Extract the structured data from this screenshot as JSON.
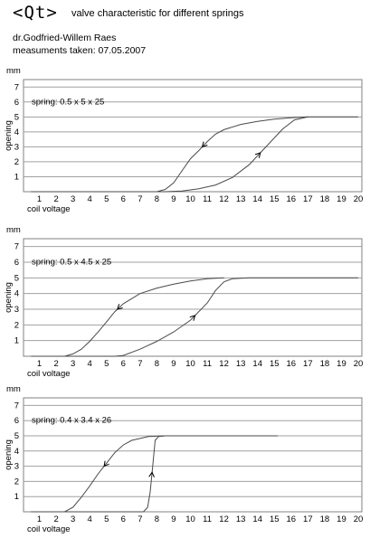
{
  "header": {
    "logo": "<Qt>",
    "title": "valve characteristic for different springs",
    "author": "dr.Godfried-Willem Raes",
    "measured": "measuments taken: 07.05.2007"
  },
  "colors": {
    "curve": "#4a4a4a",
    "grid": "#a0a0a0",
    "frame": "#808080"
  },
  "chart_data": [
    {
      "type": "line",
      "annotation": "spring: 0.5 x 5 x 25",
      "xlabel": "coil voltage",
      "ylabel": "opening",
      "unit": "mm",
      "xlim": [
        0,
        20
      ],
      "ylim": [
        0,
        7.5
      ],
      "xticks": [
        1,
        2,
        3,
        4,
        5,
        6,
        7,
        8,
        9,
        10,
        11,
        12,
        13,
        14,
        15,
        16,
        17,
        18,
        19,
        20
      ],
      "yticks": [
        1,
        2,
        3,
        4,
        5,
        6,
        7
      ],
      "series": [
        {
          "direction": "rising",
          "x": [
            0.5,
            8.5,
            9.5,
            10.5,
            11.5,
            12.5,
            13.5,
            14.5,
            15.5,
            16.2,
            17,
            18,
            20
          ],
          "y": [
            0,
            0,
            0.05,
            0.2,
            0.45,
            0.95,
            1.8,
            3.0,
            4.2,
            4.8,
            5.0,
            5.0,
            5.0
          ]
        },
        {
          "direction": "falling",
          "x": [
            17,
            16,
            15,
            14,
            13,
            12,
            11.5,
            11,
            10.5,
            10,
            9.5,
            9,
            8.5,
            8,
            0.5
          ],
          "y": [
            5.0,
            4.95,
            4.85,
            4.7,
            4.5,
            4.15,
            3.85,
            3.35,
            2.75,
            2.2,
            1.4,
            0.6,
            0.15,
            0,
            0
          ]
        }
      ]
    },
    {
      "type": "line",
      "annotation": "spring: 0.5 x 4.5 x 25",
      "xlabel": "coil voltage",
      "ylabel": "opening",
      "unit": "mm",
      "xlim": [
        0,
        20
      ],
      "ylim": [
        0,
        7.5
      ],
      "xticks": [
        1,
        2,
        3,
        4,
        5,
        6,
        7,
        8,
        9,
        10,
        11,
        12,
        13,
        14,
        15,
        16,
        17,
        18,
        19,
        20
      ],
      "yticks": [
        1,
        2,
        3,
        4,
        5,
        6,
        7
      ],
      "series": [
        {
          "direction": "rising",
          "x": [
            0.5,
            5.5,
            6,
            7,
            8,
            9,
            10,
            11,
            11.5,
            12,
            12.5,
            13.5,
            20
          ],
          "y": [
            0,
            0,
            0.05,
            0.45,
            0.95,
            1.55,
            2.3,
            3.4,
            4.2,
            4.75,
            4.95,
            5.0,
            5.0
          ]
        },
        {
          "direction": "falling",
          "x": [
            12,
            11,
            10,
            9,
            8,
            7,
            6,
            5.5,
            5,
            4.5,
            4,
            3.5,
            3,
            2.5,
            0.5
          ],
          "y": [
            5.0,
            4.95,
            4.8,
            4.6,
            4.35,
            4.0,
            3.35,
            2.85,
            2.2,
            1.55,
            0.95,
            0.45,
            0.15,
            0,
            0
          ]
        }
      ]
    },
    {
      "type": "line",
      "annotation": "spring: 0.4 x 3.4 x 26",
      "xlabel": "coil voltage",
      "ylabel": "opening",
      "unit": "mm",
      "xlim": [
        0,
        20
      ],
      "ylim": [
        0,
        7.5
      ],
      "xticks": [
        1,
        2,
        3,
        4,
        5,
        6,
        7,
        8,
        9,
        10,
        11,
        12,
        13,
        14,
        15,
        16,
        17,
        18,
        19,
        20
      ],
      "yticks": [
        1,
        2,
        3,
        4,
        5,
        6,
        7
      ],
      "series": [
        {
          "direction": "rising",
          "x": [
            0.5,
            7.2,
            7.45,
            7.6,
            7.75,
            7.9,
            8.1,
            8.5,
            15.2
          ],
          "y": [
            0,
            0,
            0.3,
            1.3,
            3.0,
            4.7,
            4.95,
            5.0,
            5.0
          ]
        },
        {
          "direction": "falling",
          "x": [
            8.5,
            7.5,
            6.5,
            6,
            5.5,
            5,
            4.5,
            4,
            3.5,
            3,
            2.5,
            0.5
          ],
          "y": [
            5.0,
            4.95,
            4.7,
            4.4,
            3.9,
            3.2,
            2.5,
            1.7,
            0.95,
            0.3,
            0,
            0
          ]
        }
      ]
    }
  ]
}
